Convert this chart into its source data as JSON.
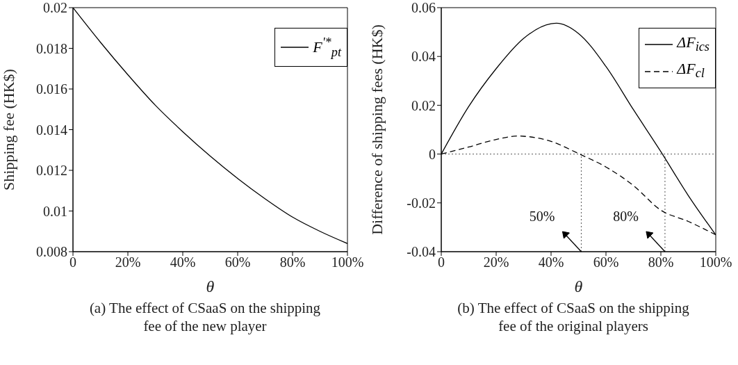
{
  "chart_data": [
    {
      "type": "line",
      "title": "(a) The effect of CSaaS on the shipping fee of the new player",
      "xlabel": "θ",
      "ylabel": "Shipping fee (HK$)",
      "series": [
        {
          "name": "F$^{'*}$$_{pt}$",
          "color": "#000000",
          "line_style": "solid",
          "x": [
            0,
            0.1,
            0.2,
            0.3,
            0.4,
            0.5,
            0.6,
            0.7,
            0.8,
            0.9,
            1
          ],
          "values": [
            0.02,
            0.0183,
            0.0167,
            0.0152,
            0.0139,
            0.0127,
            0.0116,
            0.0106,
            0.0097,
            0.009,
            0.0084
          ]
        }
      ],
      "xlim": [
        0,
        1
      ],
      "xticks": [
        0,
        {
          "value": 0.2,
          "label": "20%"
        },
        {
          "value": 0.4,
          "label": "40%"
        },
        {
          "value": 0.6,
          "label": "60%"
        },
        {
          "value": 0.8,
          "label": "80%"
        },
        {
          "value": 1,
          "label": "100%"
        }
      ],
      "ylim": [
        0.008,
        0.02
      ],
      "yticks": [
        0.008,
        0.01,
        0.012,
        0.014,
        0.016,
        0.018,
        0.02
      ],
      "legend": "top right",
      "marker": "none"
    },
    {
      "type": "line",
      "title": "(b) The effect of CSaaS on the shipping fee of the original players",
      "xlabel": "θ",
      "ylabel": "Difference of shipping fees (HK$)",
      "series": [
        {
          "name": "ΔF$_{ics}$",
          "color": "#000000",
          "line_style": "solid",
          "x": [
            0,
            0.1,
            0.2,
            0.3,
            0.4,
            0.42,
            0.5,
            0.6,
            0.7,
            0.8,
            0.9,
            1
          ],
          "values": [
            0,
            0.0195,
            0.035,
            0.0474,
            0.0534,
            0.0536,
            0.0494,
            0.0359,
            0.0182,
            0.001,
            -0.017,
            -0.0331
          ]
        },
        {
          "name": "ΔF$_{cl}$",
          "color": "#000000",
          "line_style": "dashed",
          "x": [
            0,
            0.1,
            0.2,
            0.28,
            0.3,
            0.4,
            0.5,
            0.6,
            0.7,
            0.8,
            0.9,
            1
          ],
          "values": [
            0,
            0.0029,
            0.006,
            0.0074,
            0.0073,
            0.0052,
            0.0002,
            -0.0053,
            -0.0129,
            -0.023,
            -0.0276,
            -0.0331
          ]
        }
      ],
      "xlim": [
        0,
        1
      ],
      "xticks": [
        0,
        {
          "value": 0.2,
          "label": "20%"
        },
        {
          "value": 0.4,
          "label": "40%"
        },
        {
          "value": 0.6,
          "label": "60%"
        },
        {
          "value": 0.8,
          "label": "80%"
        },
        {
          "value": 1,
          "label": "100%"
        }
      ],
      "ylim": [
        -0.04,
        0.06
      ],
      "yticks": [
        -0.04,
        -0.02,
        0,
        0.02,
        0.04,
        0.06
      ],
      "legend": "top right",
      "marker": "none",
      "ref_lines": [
        {
          "axis": "y",
          "value": 0,
          "line_style": "dotted",
          "color": "#555555"
        },
        {
          "axis": "x",
          "value": 0.51,
          "line_style": "dotted",
          "color": "#555555"
        },
        {
          "axis": "x",
          "value": 0.815,
          "line_style": "dotted",
          "color": "#555555"
        }
      ],
      "annotations": [
        {
          "text": "50%",
          "x": 0.51,
          "y": -0.04
        },
        {
          "text": "80%",
          "x": 0.815,
          "y": -0.04
        }
      ]
    }
  ]
}
